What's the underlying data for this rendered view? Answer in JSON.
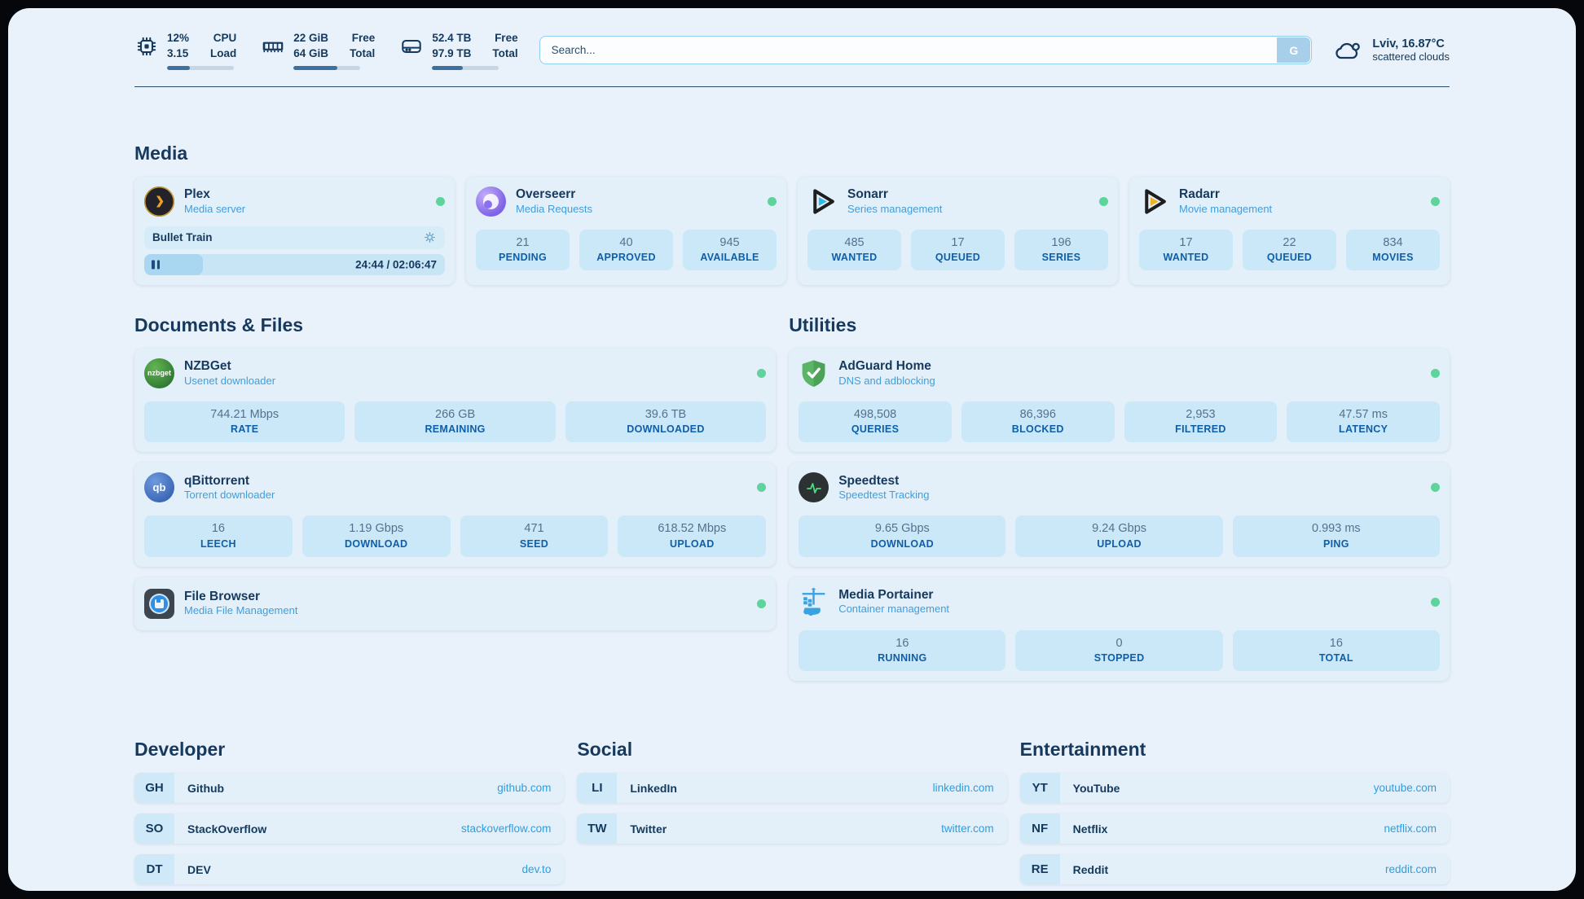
{
  "topbar": {
    "metrics": [
      {
        "icon": "cpu-icon",
        "values": [
          "12%",
          "3.15"
        ],
        "labels": [
          "CPU",
          "Load"
        ],
        "progress_pct": 34
      },
      {
        "icon": "ram-icon",
        "values": [
          "22 GiB",
          "64 GiB"
        ],
        "labels": [
          "Free",
          "Total"
        ],
        "progress_pct": 65
      },
      {
        "icon": "disk-icon",
        "values": [
          "52.4 TB",
          "97.9 TB"
        ],
        "labels": [
          "Free",
          "Total"
        ],
        "progress_pct": 46
      }
    ],
    "search": {
      "placeholder": "Search...",
      "button_label": "G"
    },
    "weather": {
      "location_temp": "Lviv, 16.87°C",
      "condition": "scattered clouds"
    }
  },
  "media": {
    "title": "Media",
    "plex": {
      "name": "Plex",
      "desc": "Media server",
      "now_playing": "Bullet Train",
      "time": "24:44 / 02:06:47",
      "progress_pct": 19.5
    },
    "overseerr": {
      "name": "Overseerr",
      "desc": "Media Requests",
      "stats": [
        {
          "value": "21",
          "label": "PENDING"
        },
        {
          "value": "40",
          "label": "APPROVED"
        },
        {
          "value": "945",
          "label": "AVAILABLE"
        }
      ]
    },
    "sonarr": {
      "name": "Sonarr",
      "desc": "Series management",
      "stats": [
        {
          "value": "485",
          "label": "WANTED"
        },
        {
          "value": "17",
          "label": "QUEUED"
        },
        {
          "value": "196",
          "label": "SERIES"
        }
      ]
    },
    "radarr": {
      "name": "Radarr",
      "desc": "Movie management",
      "stats": [
        {
          "value": "17",
          "label": "WANTED"
        },
        {
          "value": "22",
          "label": "QUEUED"
        },
        {
          "value": "834",
          "label": "MOVIES"
        }
      ]
    }
  },
  "documents": {
    "title": "Documents & Files",
    "nzbget": {
      "name": "NZBGet",
      "desc": "Usenet downloader",
      "icon_text": "nzbget",
      "stats": [
        {
          "value": "744.21 Mbps",
          "label": "RATE"
        },
        {
          "value": "266 GB",
          "label": "REMAINING"
        },
        {
          "value": "39.6 TB",
          "label": "DOWNLOADED"
        }
      ]
    },
    "qbittorrent": {
      "name": "qBittorrent",
      "desc": "Torrent downloader",
      "icon_text": "qb",
      "stats": [
        {
          "value": "16",
          "label": "LEECH"
        },
        {
          "value": "1.19 Gbps",
          "label": "DOWNLOAD"
        },
        {
          "value": "471",
          "label": "SEED"
        },
        {
          "value": "618.52 Mbps",
          "label": "UPLOAD"
        }
      ]
    },
    "filebrowser": {
      "name": "File Browser",
      "desc": "Media File Management"
    }
  },
  "utilities": {
    "title": "Utilities",
    "adguard": {
      "name": "AdGuard Home",
      "desc": "DNS and adblocking",
      "stats": [
        {
          "value": "498,508",
          "label": "QUERIES"
        },
        {
          "value": "86,396",
          "label": "BLOCKED"
        },
        {
          "value": "2,953",
          "label": "FILTERED"
        },
        {
          "value": "47.57 ms",
          "label": "LATENCY"
        }
      ]
    },
    "speedtest": {
      "name": "Speedtest",
      "desc": "Speedtest Tracking",
      "stats": [
        {
          "value": "9.65 Gbps",
          "label": "DOWNLOAD"
        },
        {
          "value": "9.24 Gbps",
          "label": "UPLOAD"
        },
        {
          "value": "0.993 ms",
          "label": "PING"
        }
      ]
    },
    "portainer": {
      "name": "Media Portainer",
      "desc": "Container management",
      "stats": [
        {
          "value": "16",
          "label": "RUNNING"
        },
        {
          "value": "0",
          "label": "STOPPED"
        },
        {
          "value": "16",
          "label": "TOTAL"
        }
      ]
    }
  },
  "bookmarks": [
    {
      "title": "Developer",
      "links": [
        {
          "abbr": "GH",
          "name": "Github",
          "url": "github.com"
        },
        {
          "abbr": "SO",
          "name": "StackOverflow",
          "url": "stackoverflow.com"
        },
        {
          "abbr": "DT",
          "name": "DEV",
          "url": "dev.to"
        }
      ]
    },
    {
      "title": "Social",
      "links": [
        {
          "abbr": "LI",
          "name": "LinkedIn",
          "url": "linkedin.com"
        },
        {
          "abbr": "TW",
          "name": "Twitter",
          "url": "twitter.com"
        }
      ]
    },
    {
      "title": "Entertainment",
      "links": [
        {
          "abbr": "YT",
          "name": "YouTube",
          "url": "youtube.com"
        },
        {
          "abbr": "NF",
          "name": "Netflix",
          "url": "netflix.com"
        },
        {
          "abbr": "RE",
          "name": "Reddit",
          "url": "reddit.com"
        }
      ]
    }
  ],
  "colors": {
    "background": "#e9f2fa",
    "card": "#e3f0f9",
    "stat_tile": "#cbe8f8",
    "text_primary": "#14395c",
    "text_accent": "#3f9edd",
    "stat_label": "#0f5ea9",
    "link": "#2d9de2",
    "status_online": "#5ed39b",
    "plex_accent": "#eba322"
  }
}
